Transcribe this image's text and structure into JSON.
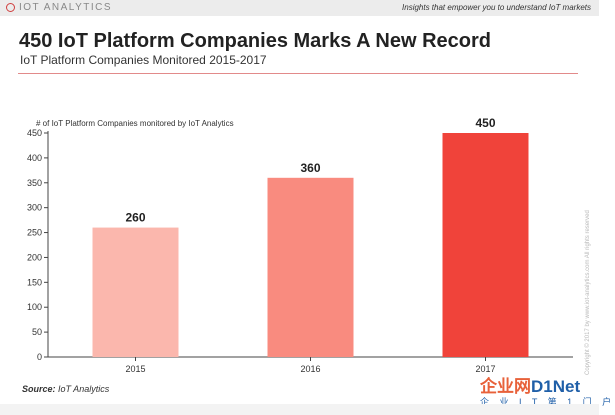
{
  "header": {
    "logo_text": "IOT ANALYTICS",
    "tagline": "Insights that empower you to understand IoT markets"
  },
  "title": "450 IoT Platform Companies Marks A New Record",
  "subtitle": "IoT Platform Companies Monitored 2015-2017",
  "source": {
    "label": "Source:",
    "text": " IoT Analytics"
  },
  "copyright": "Copyright © 2017 by www.iot-analytics.com All rights reserved",
  "watermark": {
    "main": "企业网",
    "net": "D1Net",
    "sub": "企 业 I T 第 1 门 户"
  },
  "chart_data": {
    "type": "bar",
    "title": "450 IoT Platform Companies Marks A New Record",
    "subtitle": "IoT Platform Companies Monitored 2015-2017",
    "ylabel": "# of IoT Platform Companies monitored by IoT Analytics",
    "xlabel": "",
    "categories": [
      "2015",
      "2016",
      "2017"
    ],
    "values": [
      260,
      360,
      450
    ],
    "data_labels": [
      "260",
      "360",
      "450"
    ],
    "ylim": [
      0,
      450
    ],
    "yticks": [
      0,
      50,
      100,
      150,
      200,
      250,
      300,
      350,
      400,
      450
    ],
    "colors": [
      "#fbb7ad",
      "#f98b7f",
      "#f0433a"
    ],
    "grid": false,
    "legend": "none"
  }
}
